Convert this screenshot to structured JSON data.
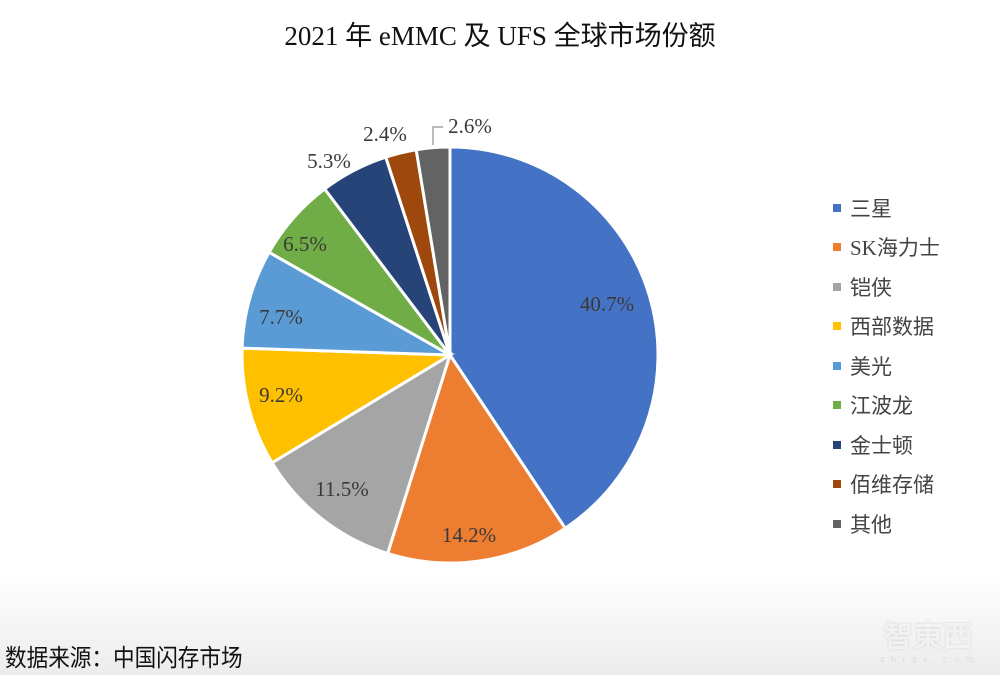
{
  "title": "2021 年 eMMC 及 UFS 全球市场份额",
  "source": "数据来源：中国闪存市场",
  "watermark": {
    "logo": "智東西",
    "sub": "zhidx.com"
  },
  "chart_data": {
    "type": "pie",
    "title": "2021 年 eMMC 及 UFS 全球市场份额",
    "categories": [
      "三星",
      "SK海力士",
      "铠侠",
      "西部数据",
      "美光",
      "江波龙",
      "金士顿",
      "佰维存储",
      "其他"
    ],
    "values": [
      40.7,
      14.2,
      11.5,
      9.2,
      7.7,
      6.5,
      5.3,
      2.4,
      2.6
    ],
    "labels": [
      "40.7%",
      "14.2%",
      "11.5%",
      "9.2%",
      "7.7%",
      "6.5%",
      "5.3%",
      "2.4%",
      "2.6%"
    ],
    "colors": [
      "#4472C4",
      "#ED7D31",
      "#A5A5A5",
      "#FFC000",
      "#5B9BD5",
      "#70AD47",
      "#264478",
      "#9E480E",
      "#636363"
    ],
    "start_angle": "12 o'clock",
    "direction": "clockwise",
    "legend_position": "right",
    "unit": "%"
  },
  "legend": {
    "items": [
      {
        "label": "三星",
        "color": "#4472C4"
      },
      {
        "label": "SK海力士",
        "color": "#ED7D31"
      },
      {
        "label": "铠侠",
        "color": "#A5A5A5"
      },
      {
        "label": "西部数据",
        "color": "#FFC000"
      },
      {
        "label": "美光",
        "color": "#5B9BD5"
      },
      {
        "label": "江波龙",
        "color": "#70AD47"
      },
      {
        "label": "金士顿",
        "color": "#264478"
      },
      {
        "label": "佰维存储",
        "color": "#9E480E"
      },
      {
        "label": "其他",
        "color": "#636363"
      }
    ]
  }
}
